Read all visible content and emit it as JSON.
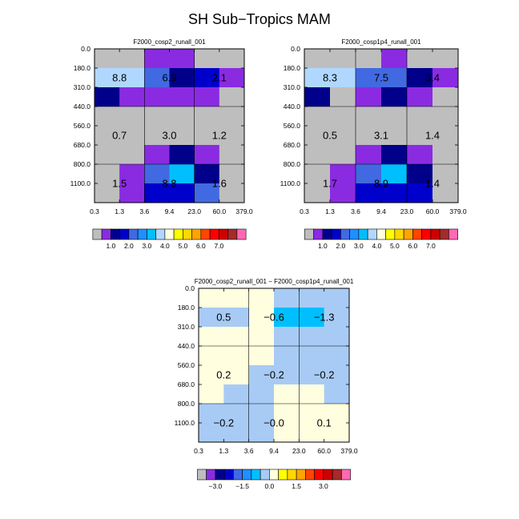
{
  "page_title": "SH Sub−Tropics MAM",
  "colorbars": {
    "abs": {
      "colors": [
        "#bebebe",
        "#8a2be2",
        "#00008b",
        "#0000cd",
        "#4169e1",
        "#1e90ff",
        "#00bfff",
        "#b0d8ff",
        "#ffffe0",
        "#ffff00",
        "#ffd700",
        "#ffa500",
        "#ff4500",
        "#ff0000",
        "#cd0000",
        "#a52a2a",
        "#ff69b4"
      ],
      "labels": [
        "1.0",
        "2.0",
        "3.0",
        "4.0",
        "5.0",
        "6.0",
        "7.0"
      ],
      "label_after_box": [
        2,
        4,
        6,
        8,
        10,
        12,
        14
      ]
    },
    "diff": {
      "colors": [
        "#bebebe",
        "#8a2be2",
        "#00008b",
        "#0000cd",
        "#4169e1",
        "#1e90ff",
        "#00bfff",
        "#a8cbf5",
        "#ffffe0",
        "#ffff00",
        "#ffd700",
        "#ffa500",
        "#ff4500",
        "#ff0000",
        "#cd0000",
        "#a52a2a",
        "#ff69b4"
      ],
      "labels": [
        "−3.0",
        "−1.5",
        "0.0",
        "1.5",
        "3.0"
      ],
      "label_after_box": [
        2,
        5,
        8,
        11,
        14
      ]
    }
  },
  "chart_data": [
    {
      "type": "heatmap",
      "title": "F2000_cosp2_runall_001",
      "x_tick_labels": [
        "0.3",
        "1.3",
        "3.6",
        "9.4",
        "23.0",
        "60.0",
        "379.0"
      ],
      "y_tick_labels": [
        "0.0",
        "180.0",
        "310.0",
        "440.0",
        "560.0",
        "680.0",
        "800.0",
        "1100.0"
      ],
      "colorbar": "abs",
      "cells": [
        [
          0,
          0,
          1,
          1,
          0,
          0
        ],
        [
          7,
          7,
          4,
          2,
          3,
          1
        ],
        [
          2,
          1,
          1,
          1,
          1,
          0
        ],
        [
          0,
          0,
          0,
          0,
          0,
          0
        ],
        [
          0,
          0,
          0,
          0,
          0,
          0
        ],
        [
          0,
          0,
          1,
          2,
          1,
          0
        ],
        [
          0,
          1,
          4,
          6,
          2,
          0
        ],
        [
          0,
          1,
          3,
          3,
          4,
          0
        ]
      ],
      "group_labels": [
        {
          "row_group": 0,
          "col_group": 0,
          "text": "8.8"
        },
        {
          "row_group": 0,
          "col_group": 1,
          "text": "6.9"
        },
        {
          "row_group": 0,
          "col_group": 2,
          "text": "2.1"
        },
        {
          "row_group": 1,
          "col_group": 0,
          "text": "0.7"
        },
        {
          "row_group": 1,
          "col_group": 1,
          "text": "3.0"
        },
        {
          "row_group": 1,
          "col_group": 2,
          "text": "1.2"
        },
        {
          "row_group": 2,
          "col_group": 0,
          "text": "1.5"
        },
        {
          "row_group": 2,
          "col_group": 1,
          "text": "8.8"
        },
        {
          "row_group": 2,
          "col_group": 2,
          "text": "1.6"
        }
      ]
    },
    {
      "type": "heatmap",
      "title": "F2000_cosp1p4_runall_001",
      "x_tick_labels": [
        "0.3",
        "1.3",
        "3.6",
        "9.4",
        "23.0",
        "60.0",
        "379.0"
      ],
      "y_tick_labels": [
        "0.0",
        "180.0",
        "310.0",
        "440.0",
        "560.0",
        "680.0",
        "800.0",
        "1100.0"
      ],
      "colorbar": "abs",
      "cells": [
        [
          0,
          0,
          0,
          1,
          0,
          0
        ],
        [
          7,
          7,
          4,
          4,
          2,
          1
        ],
        [
          2,
          0,
          1,
          2,
          1,
          0
        ],
        [
          0,
          0,
          0,
          0,
          0,
          0
        ],
        [
          0,
          0,
          0,
          0,
          0,
          0
        ],
        [
          0,
          0,
          1,
          2,
          1,
          0
        ],
        [
          0,
          1,
          4,
          6,
          2,
          0
        ],
        [
          0,
          1,
          3,
          3,
          3,
          0
        ]
      ],
      "group_labels": [
        {
          "row_group": 0,
          "col_group": 0,
          "text": "8.3"
        },
        {
          "row_group": 0,
          "col_group": 1,
          "text": "7.5"
        },
        {
          "row_group": 0,
          "col_group": 2,
          "text": "3.4"
        },
        {
          "row_group": 1,
          "col_group": 0,
          "text": "0.5"
        },
        {
          "row_group": 1,
          "col_group": 1,
          "text": "3.1"
        },
        {
          "row_group": 1,
          "col_group": 2,
          "text": "1.4"
        },
        {
          "row_group": 2,
          "col_group": 0,
          "text": "1.7"
        },
        {
          "row_group": 2,
          "col_group": 1,
          "text": "8.9"
        },
        {
          "row_group": 2,
          "col_group": 2,
          "text": "1.4"
        }
      ]
    },
    {
      "type": "heatmap",
      "title": "F2000_cosp2_runall_001 − F2000_cosp1p4_runall_001",
      "x_tick_labels": [
        "0.3",
        "1.3",
        "3.6",
        "9.4",
        "23.0",
        "60.0",
        "379.0"
      ],
      "y_tick_labels": [
        "0.0",
        "180.0",
        "310.0",
        "440.0",
        "560.0",
        "680.0",
        "800.0",
        "1100.0"
      ],
      "colorbar": "diff",
      "cells": [
        [
          8,
          8,
          8,
          7,
          7,
          7
        ],
        [
          7,
          7,
          8,
          6,
          6,
          7
        ],
        [
          8,
          8,
          8,
          7,
          7,
          7
        ],
        [
          8,
          8,
          8,
          7,
          7,
          7
        ],
        [
          8,
          8,
          7,
          7,
          7,
          7
        ],
        [
          8,
          7,
          7,
          8,
          8,
          7
        ],
        [
          7,
          7,
          7,
          8,
          8,
          8
        ],
        [
          7,
          7,
          7,
          8,
          8,
          8
        ]
      ],
      "group_labels": [
        {
          "row_group": 0,
          "col_group": 0,
          "text": "0.5"
        },
        {
          "row_group": 0,
          "col_group": 1,
          "text": "−0.6"
        },
        {
          "row_group": 0,
          "col_group": 2,
          "text": "−1.3"
        },
        {
          "row_group": 1,
          "col_group": 0,
          "text": "0.2"
        },
        {
          "row_group": 1,
          "col_group": 1,
          "text": "−0.2"
        },
        {
          "row_group": 1,
          "col_group": 2,
          "text": "−0.2"
        },
        {
          "row_group": 2,
          "col_group": 0,
          "text": "−0.2"
        },
        {
          "row_group": 2,
          "col_group": 1,
          "text": "−0.0"
        },
        {
          "row_group": 2,
          "col_group": 2,
          "text": "0.1"
        }
      ]
    }
  ]
}
